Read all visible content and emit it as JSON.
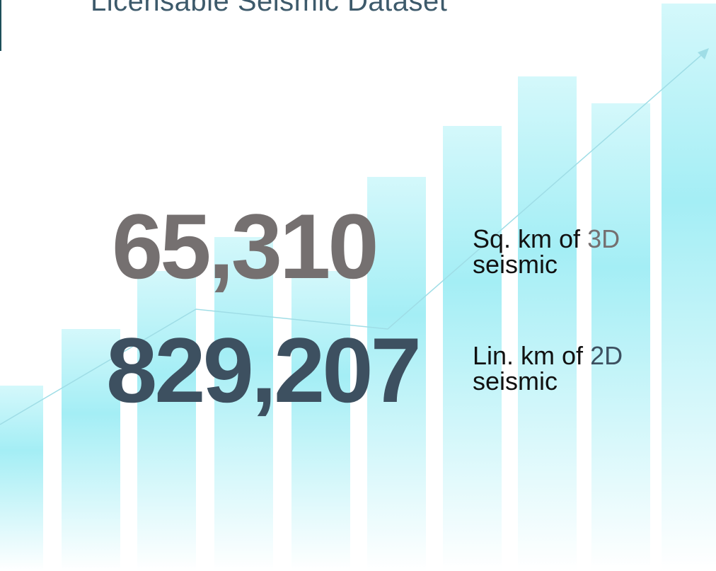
{
  "header": {
    "title": "Licensable Seismic Dataset"
  },
  "stats": [
    {
      "value": "65,310",
      "label_prefix": "Sq. km of",
      "label_highlight": "3D",
      "label_suffix": "seismic"
    },
    {
      "value": "829,207",
      "label_prefix": "Lin. km of",
      "label_highlight": "2D",
      "label_suffix": "seismic"
    }
  ]
}
